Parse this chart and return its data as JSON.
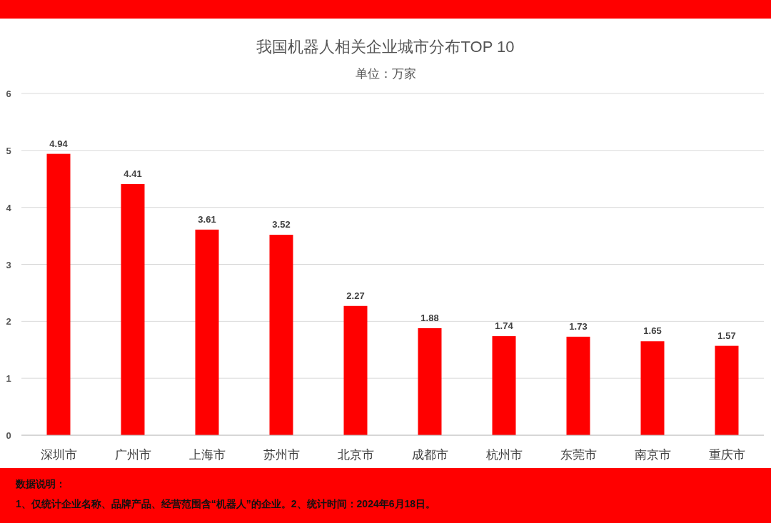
{
  "chart_data": {
    "type": "bar",
    "title": "我国机器人相关企业城市分布TOP 10",
    "subtitle": "单位：万家",
    "categories": [
      "深圳市",
      "广州市",
      "上海市",
      "苏州市",
      "北京市",
      "成都市",
      "杭州市",
      "东莞市",
      "南京市",
      "重庆市"
    ],
    "values": [
      4.94,
      4.41,
      3.61,
      3.52,
      2.27,
      1.88,
      1.74,
      1.73,
      1.65,
      1.57
    ],
    "color": "#ff0000",
    "ylim": [
      0,
      6
    ],
    "yticks": [
      0,
      1,
      2,
      3,
      4,
      5,
      6
    ],
    "grid": "y",
    "data_labels": true,
    "annotations": [
      "数据说明：",
      "1、仅统计企业名称、品牌产品、经营范围含“机器人”的企业。2、统计时间：2024年6月18日。"
    ]
  }
}
